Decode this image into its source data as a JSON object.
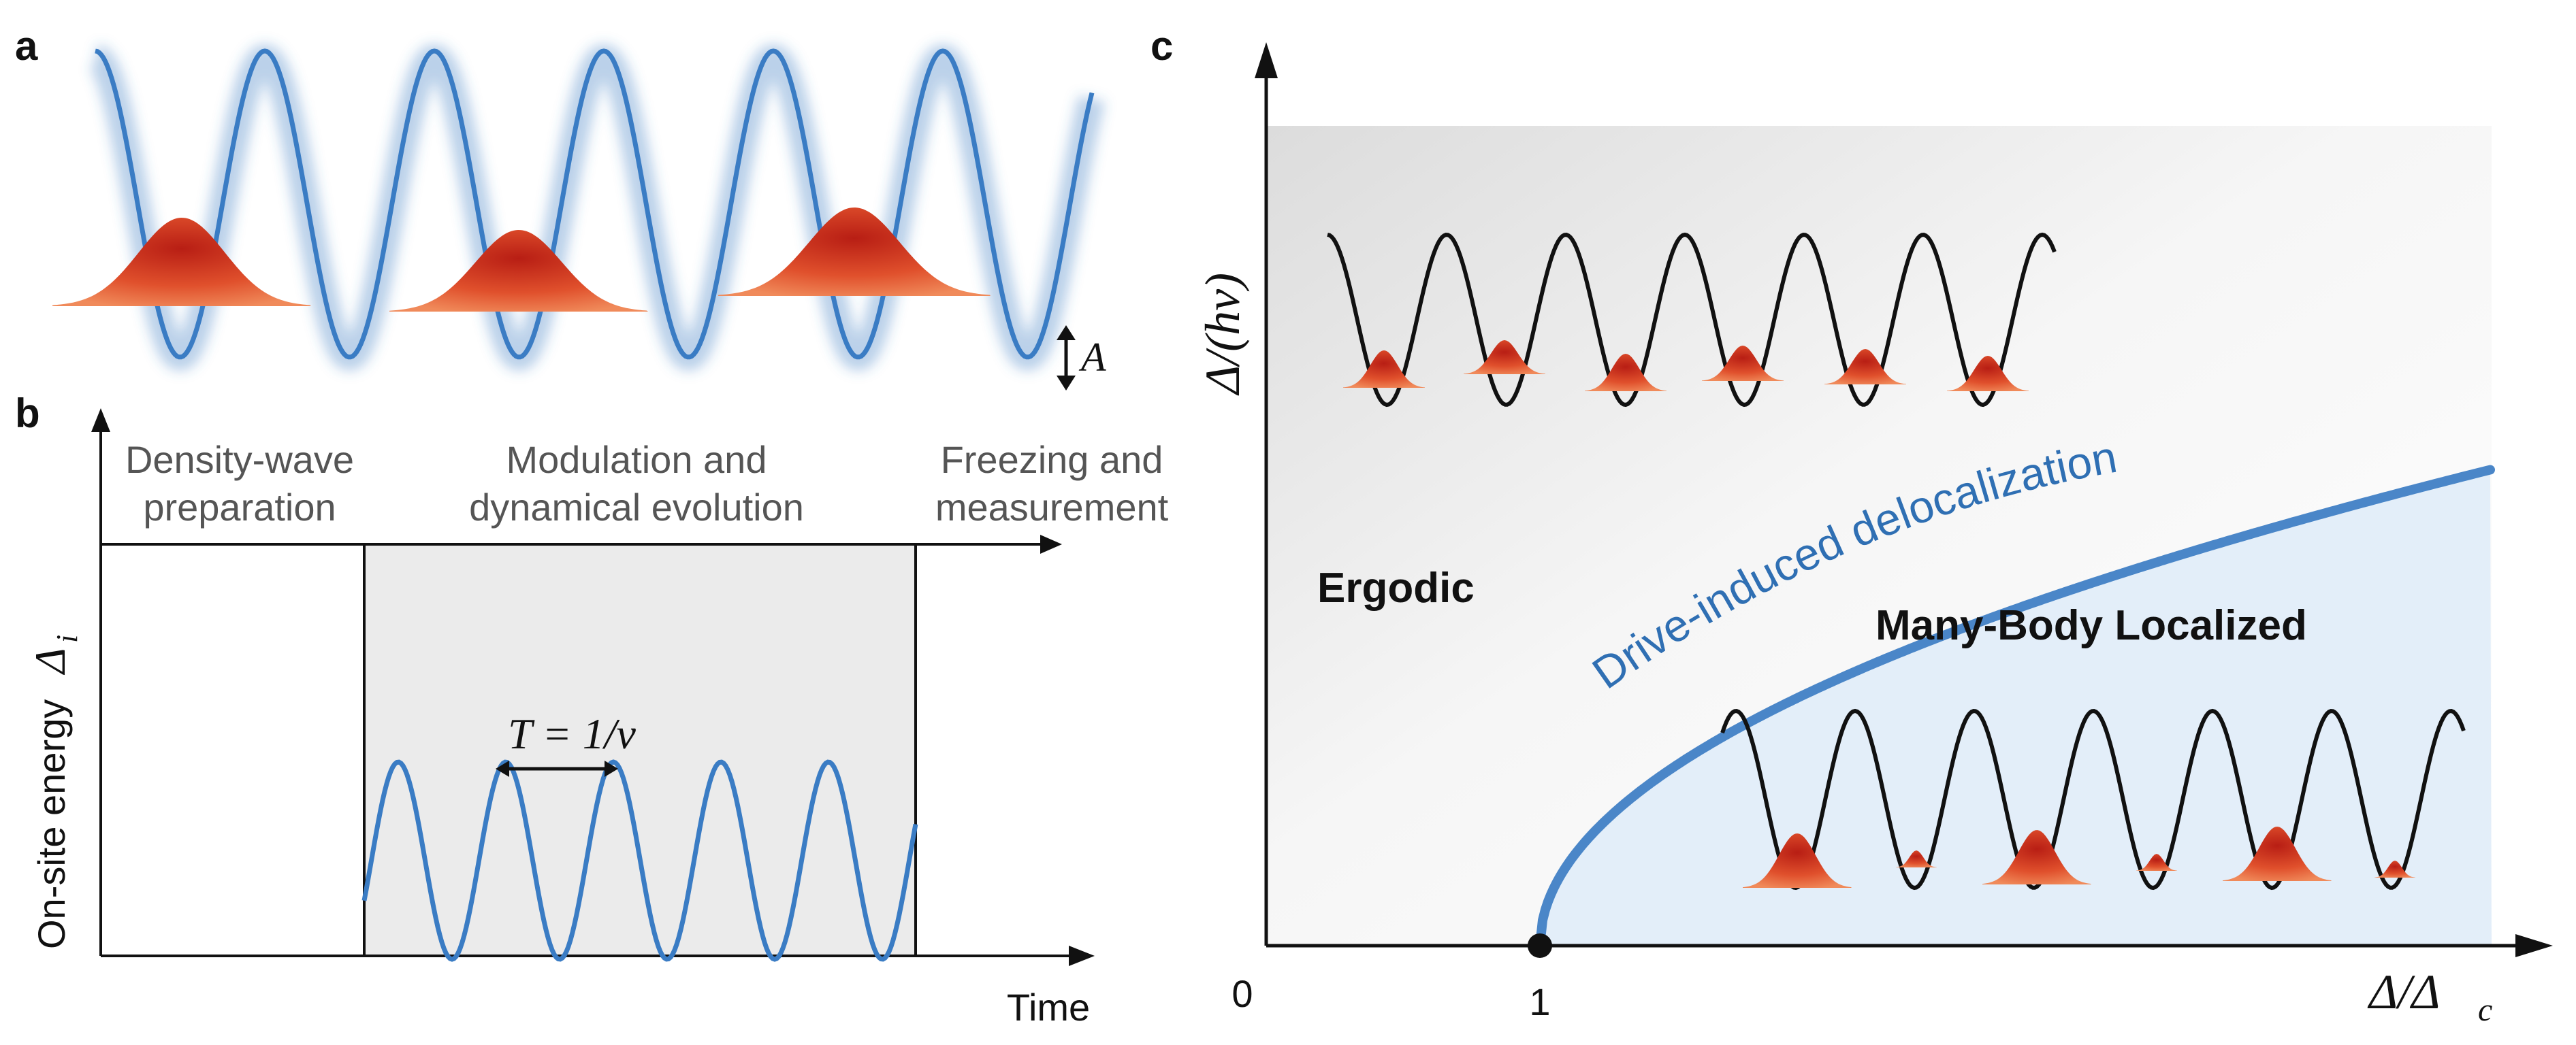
{
  "panels": {
    "a": {
      "letter": "a",
      "amplitude_label": "A"
    },
    "b": {
      "letter": "b",
      "phases": [
        {
          "line1": "Density-wave",
          "line2": "preparation"
        },
        {
          "line1": "Modulation and",
          "line2": "dynamical evolution"
        },
        {
          "line1": "Freezing and",
          "line2": "measurement"
        }
      ],
      "y_label": "On-site energy",
      "y_symbol": "Δ",
      "y_sub": "i",
      "x_label": "Time",
      "period_label": "T = 1/ν"
    },
    "c": {
      "letter": "c",
      "y_label": "Δ/(hν)",
      "x_label": "Δ/Δ",
      "x_sub": "c",
      "origin": "0",
      "critical_tick": "1",
      "region_ergodic": "Ergodic",
      "region_mbl": "Many-Body Localized",
      "curve_label": "Drive-induced delocalization"
    }
  },
  "colors": {
    "lattice_blue": "#3a7cc4",
    "atom_red": "#d8432a",
    "boundary_blue": "#4a86c8",
    "mbl_fill": "#e3eef9",
    "modulation_box": "#ebebeb"
  }
}
